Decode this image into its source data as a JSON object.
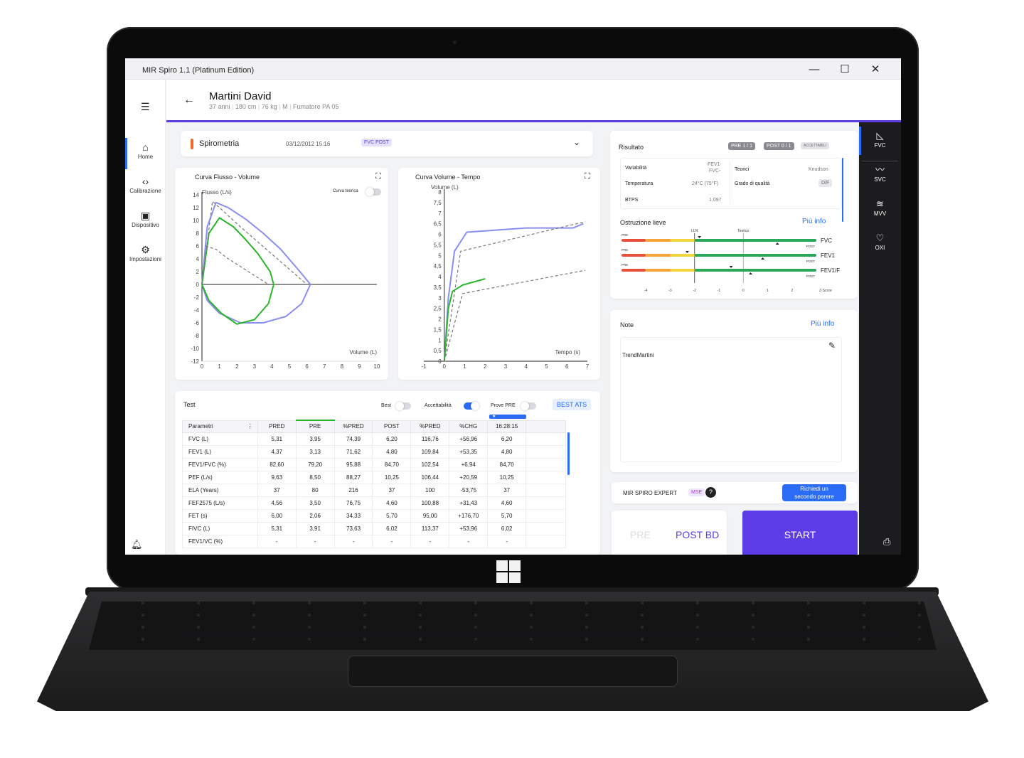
{
  "window": {
    "title": "MIR Spiro 1.1 (Platinum Edition)",
    "controls": [
      "—",
      "☐",
      "✕"
    ]
  },
  "nav": {
    "items": [
      {
        "label": "Home",
        "icon": "home-icon",
        "active": true
      },
      {
        "label": "Calibrazione",
        "icon": "code-icon",
        "active": false
      },
      {
        "label": "Dispositivo",
        "icon": "device-icon",
        "active": false
      },
      {
        "label": "Impostazioni",
        "icon": "gear-icon",
        "active": false
      }
    ],
    "bell_icon": "bell-icon"
  },
  "patient": {
    "name": "Martini David",
    "age": "37 anni",
    "height": "180 cm",
    "weight": "76 kg",
    "sex": "M",
    "smoker": "Fumatore PA 05"
  },
  "session": {
    "title": "Spirometria",
    "date": "03/12/2012 15:16",
    "badge": "FVC POST"
  },
  "chart_data": [
    {
      "type": "line",
      "title": "Curva Flusso - Volume",
      "xlabel": "Volume (L)",
      "ylabel": "Flusso (L/s)",
      "xlim": [
        0,
        10
      ],
      "ylim": [
        -12,
        14
      ],
      "xticks": [
        "0",
        "1",
        "2",
        "3",
        "4",
        "5",
        "6",
        "7",
        "8",
        "9",
        "10"
      ],
      "yticks": [
        "14",
        "12",
        "10",
        "8",
        "6",
        "4",
        "2",
        "0",
        "-2",
        "-4",
        "-6",
        "-8",
        "-10",
        "-12"
      ],
      "toggle_label": "Curva teorica",
      "series": [
        {
          "color": "#8a8ef0",
          "points": [
            [
              0,
              0
            ],
            [
              0.3,
              9
            ],
            [
              0.8,
              12.8
            ],
            [
              1.5,
              12
            ],
            [
              2.5,
              10.2
            ],
            [
              3.5,
              8
            ],
            [
              4.5,
              5.5
            ],
            [
              5.6,
              2
            ],
            [
              6.2,
              0
            ],
            [
              5.7,
              -3
            ],
            [
              4.8,
              -5
            ],
            [
              3.5,
              -6
            ],
            [
              2.2,
              -6
            ],
            [
              1,
              -4.5
            ],
            [
              0.3,
              -2.5
            ],
            [
              0,
              0
            ]
          ]
        },
        {
          "color": "#2bb52b",
          "points": [
            [
              0,
              0
            ],
            [
              0.4,
              8
            ],
            [
              1,
              10.4
            ],
            [
              1.8,
              9
            ],
            [
              2.5,
              7
            ],
            [
              3.2,
              4.8
            ],
            [
              3.9,
              2
            ],
            [
              4.1,
              0
            ],
            [
              3.8,
              -3
            ],
            [
              3,
              -5.5
            ],
            [
              2,
              -6.2
            ],
            [
              1.1,
              -4.5
            ],
            [
              0.4,
              -2.5
            ],
            [
              0,
              0
            ]
          ]
        },
        {
          "color": "#777777",
          "dashed": true,
          "points": [
            [
              0,
              0
            ],
            [
              0.6,
              13
            ],
            [
              2.2,
              9
            ],
            [
              6,
              0
            ]
          ]
        },
        {
          "color": "#777777",
          "dashed": true,
          "points": [
            [
              0.2,
              6
            ],
            [
              0.8,
              5.5
            ],
            [
              1.4,
              4.2
            ],
            [
              3.8,
              0
            ]
          ]
        }
      ]
    },
    {
      "type": "line",
      "title": "Curva Volume - Tempo",
      "xlabel": "Tempo (s)",
      "ylabel": "Volume (L)",
      "xlim": [
        -1,
        7
      ],
      "ylim": [
        0,
        8
      ],
      "xticks": [
        "-1",
        "0",
        "1",
        "2",
        "3",
        "4",
        "5",
        "6",
        "7"
      ],
      "yticks": [
        "8",
        "7,5",
        "7",
        "6,5",
        "6",
        "5,5",
        "5",
        "4,5",
        "4",
        "3,5",
        "3",
        "2,5",
        "2",
        "1,5",
        "1",
        "0,5",
        "0"
      ],
      "series": [
        {
          "color": "#8a8ef0",
          "points": [
            [
              0,
              0
            ],
            [
              0.2,
              3
            ],
            [
              0.5,
              5.2
            ],
            [
              1.1,
              6.1
            ],
            [
              4,
              6.3
            ],
            [
              6.3,
              6.3
            ],
            [
              6.8,
              6.5
            ]
          ]
        },
        {
          "color": "#2bb52b",
          "points": [
            [
              0,
              0
            ],
            [
              0.2,
              2.5
            ],
            [
              0.4,
              3.3
            ],
            [
              0.9,
              3.6
            ],
            [
              2,
              3.9
            ]
          ]
        },
        {
          "color": "#777777",
          "dashed": true,
          "points": [
            [
              0,
              0
            ],
            [
              0.8,
              5.2
            ],
            [
              6.9,
              6.6
            ]
          ]
        },
        {
          "color": "#777777",
          "dashed": true,
          "points": [
            [
              0,
              0
            ],
            [
              0.9,
              3.2
            ],
            [
              6.9,
              4.3
            ]
          ]
        }
      ]
    }
  ],
  "tests": {
    "title": "Test",
    "toggles": [
      {
        "label": "Best",
        "on": false
      },
      {
        "label": "Accettabilità",
        "on": true
      },
      {
        "label": "Prove PRE",
        "on": false
      }
    ],
    "best_button": "BEST ATS",
    "trial_marker": "★",
    "columns": [
      "Parametri",
      "PRED",
      "PRE",
      "%PRED",
      "POST",
      "%PRED",
      "%CHG",
      "16:28:15",
      ""
    ],
    "rows": [
      [
        "FVC (L)",
        "5,31",
        "3,95",
        "74,39",
        "6,20",
        "116,76",
        "+56,96",
        "6,20",
        ""
      ],
      [
        "FEV1 (L)",
        "4,37",
        "3,13",
        "71,62",
        "4,80",
        "109,84",
        "+53,35",
        "4,80",
        ""
      ],
      [
        "FEV1/FVC (%)",
        "82,60",
        "79,20",
        "95,88",
        "84,70",
        "102,54",
        "+6,94",
        "84,70",
        ""
      ],
      [
        "PEF (L/s)",
        "9,63",
        "8,50",
        "88,27",
        "10,25",
        "106,44",
        "+20,59",
        "10,25",
        ""
      ],
      [
        "ELA (Years)",
        "37",
        "80",
        "216",
        "37",
        "100",
        "-53,75",
        "37",
        ""
      ],
      [
        "FEF2575 (L/s)",
        "4,56",
        "3,50",
        "76,75",
        "4,60",
        "100,88",
        "+31,43",
        "4,60",
        ""
      ],
      [
        "FET (s)",
        "6,00",
        "2,06",
        "34,33",
        "5,70",
        "95,00",
        "+176,70",
        "5,70",
        ""
      ],
      [
        "FIVC (L)",
        "5,31",
        "3,91",
        "73,63",
        "6,02",
        "113,37",
        "+53,96",
        "6,02",
        ""
      ],
      [
        "FEV1/VC (%)",
        "-",
        "-",
        "-",
        "-",
        "-",
        "-",
        "-",
        ""
      ]
    ]
  },
  "result": {
    "title": "Risultato",
    "pre_badge": "PRE 1 / 1",
    "post_badge": "POST 0 / 1",
    "acc_badge": "ACCETTABILI",
    "variabilita_label": "Variabilità",
    "variabilita_value_1": "FEV1-",
    "variabilita_value_2": "FVC-",
    "temperatura_label": "Temperatura",
    "temperatura_value": "24°C (75°F)",
    "btps_label": "BTPS",
    "btps_value": "1,097",
    "teorici_label": "Teorici",
    "teorici_value": "Knudson",
    "grado_label": "Grado di qualità",
    "grado_value": "D/F",
    "obstruction": "Ostruzione lieve",
    "more": "Più info",
    "lln": "LLN",
    "teorico": "Teorico",
    "bars": [
      {
        "name": "FVC",
        "pre_label": "PRE",
        "post_label": "POST",
        "pre_z": -1.8,
        "post_z": 1.4
      },
      {
        "name": "FEV1",
        "pre_label": "PRE",
        "post_label": "POST",
        "pre_z": -2.3,
        "post_z": 0.8
      },
      {
        "name": "FEV1/F",
        "pre_label": "PRE",
        "post_label": "POST",
        "pre_z": -0.5,
        "post_z": 0.3
      }
    ],
    "zaxis": [
      "-4",
      "-3",
      "-2",
      "-1",
      "0",
      "1",
      "2"
    ],
    "zlabel": "Z-Score"
  },
  "note": {
    "title": "Note",
    "more": "Più info",
    "text": "TrendMartini"
  },
  "expert": {
    "label": "MIR SPIRO EXPERT",
    "badge": "MSE",
    "help": "?",
    "button_line1": "Richiedi un",
    "button_line2": "secondo parere"
  },
  "actions": {
    "pre": "PRE",
    "post_bd": "POST BD",
    "start": "START"
  },
  "rail": {
    "items": [
      {
        "label": "FVC",
        "icon": "fvc-icon"
      },
      {
        "label": "SVC",
        "icon": "svc-icon"
      },
      {
        "label": "MVV",
        "icon": "mvv-icon"
      },
      {
        "label": "OXI",
        "icon": "oxi-icon"
      }
    ],
    "print_icon": "printer-icon"
  },
  "colors": {
    "accent": "#5b3ce6",
    "blue": "#2a6cf6",
    "green": "#2bb52b",
    "curve": "#8a8ef0",
    "orange": "#f06a2b"
  }
}
